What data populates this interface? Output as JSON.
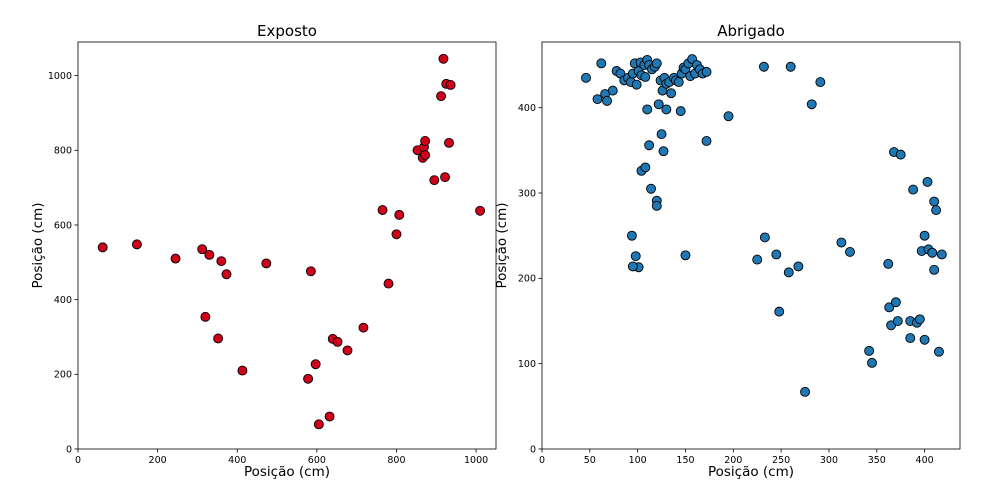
{
  "chart_data": [
    {
      "type": "scatter",
      "title": "Exposto",
      "xlabel": "Posição (cm)",
      "ylabel": "Posição (cm)",
      "xlim": [
        0,
        1050
      ],
      "ylim": [
        0,
        1090
      ],
      "xticks": [
        "0",
        "200",
        "400",
        "600",
        "800",
        "1000"
      ],
      "xtick_values": [
        0,
        200,
        400,
        600,
        800,
        1000
      ],
      "yticks": [
        "0",
        "200",
        "400",
        "600",
        "800",
        "1000"
      ],
      "ytick_values": [
        0,
        200,
        400,
        600,
        800,
        1000
      ],
      "grid": false,
      "marker_color": "#d0021b",
      "series": [
        {
          "x": [
            62,
            148,
            245,
            312,
            330,
            360,
            373,
            320,
            352,
            413,
            473,
            585,
            578,
            597,
            605,
            632,
            640,
            652,
            677,
            717,
            765,
            780,
            800,
            807,
            853,
            866,
            869,
            872,
            872,
            895,
            912,
            918,
            925,
            932,
            936,
            922,
            1010
          ],
          "y": [
            540,
            548,
            510,
            535,
            520,
            503,
            468,
            354,
            296,
            210,
            497,
            476,
            188,
            227,
            66,
            87,
            295,
            287,
            264,
            325,
            640,
            443,
            575,
            627,
            800,
            780,
            808,
            787,
            825,
            720,
            945,
            1045,
            978,
            820,
            975,
            728,
            638
          ]
        }
      ]
    },
    {
      "type": "scatter",
      "title": "Abrigado",
      "xlabel": "Posição (cm)",
      "ylabel": "Posição (cm)",
      "xlim": [
        0,
        437
      ],
      "ylim": [
        0,
        477
      ],
      "xticks": [
        "0",
        "50",
        "100",
        "150",
        "200",
        "250",
        "300",
        "350",
        "400"
      ],
      "xtick_values": [
        0,
        50,
        100,
        150,
        200,
        250,
        300,
        350,
        400
      ],
      "yticks": [
        "0",
        "100",
        "200",
        "300",
        "400"
      ],
      "ytick_values": [
        0,
        100,
        200,
        300,
        400
      ],
      "grid": false,
      "marker_color": "#1f77b4",
      "series": [
        {
          "x": [
            46,
            58,
            62,
            66,
            68,
            74,
            78,
            82,
            86,
            90,
            93,
            95,
            97,
            99,
            101,
            103,
            104,
            107,
            108,
            110,
            112,
            115,
            118,
            120,
            122,
            124,
            126,
            128,
            130,
            133,
            135,
            138,
            140,
            143,
            146,
            148,
            150,
            153,
            155,
            157,
            160,
            162,
            165,
            168,
            172,
            110,
            104,
            108,
            114,
            120,
            112,
            125,
            127,
            130,
            120,
            94,
            98,
            101,
            95,
            150,
            145,
            172,
            195,
            232,
            260,
            282,
            291,
            225,
            233,
            245,
            258,
            268,
            248,
            275,
            313,
            322,
            342,
            345,
            362,
            368,
            375,
            388,
            403,
            410,
            412,
            397,
            400,
            404,
            410,
            418,
            363,
            365,
            372,
            385,
            392,
            400,
            408,
            415,
            370,
            385,
            395
          ],
          "y": [
            435,
            410,
            452,
            416,
            408,
            420,
            443,
            440,
            432,
            435,
            430,
            440,
            452,
            427,
            443,
            453,
            438,
            450,
            436,
            456,
            450,
            445,
            448,
            452,
            404,
            432,
            420,
            435,
            428,
            430,
            417,
            435,
            432,
            430,
            440,
            447,
            445,
            452,
            437,
            457,
            440,
            450,
            445,
            440,
            442,
            398,
            326,
            330,
            305,
            291,
            356,
            369,
            349,
            398,
            285,
            250,
            226,
            213,
            214,
            227,
            396,
            361,
            390,
            448,
            448,
            404,
            430,
            222,
            248,
            228,
            207,
            214,
            161,
            67,
            242,
            231,
            115,
            101,
            217,
            348,
            345,
            304,
            313,
            290,
            280,
            232,
            250,
            234,
            210,
            228,
            166,
            145,
            150,
            150,
            148,
            128,
            230,
            114,
            172,
            130,
            152
          ]
        }
      ]
    }
  ]
}
